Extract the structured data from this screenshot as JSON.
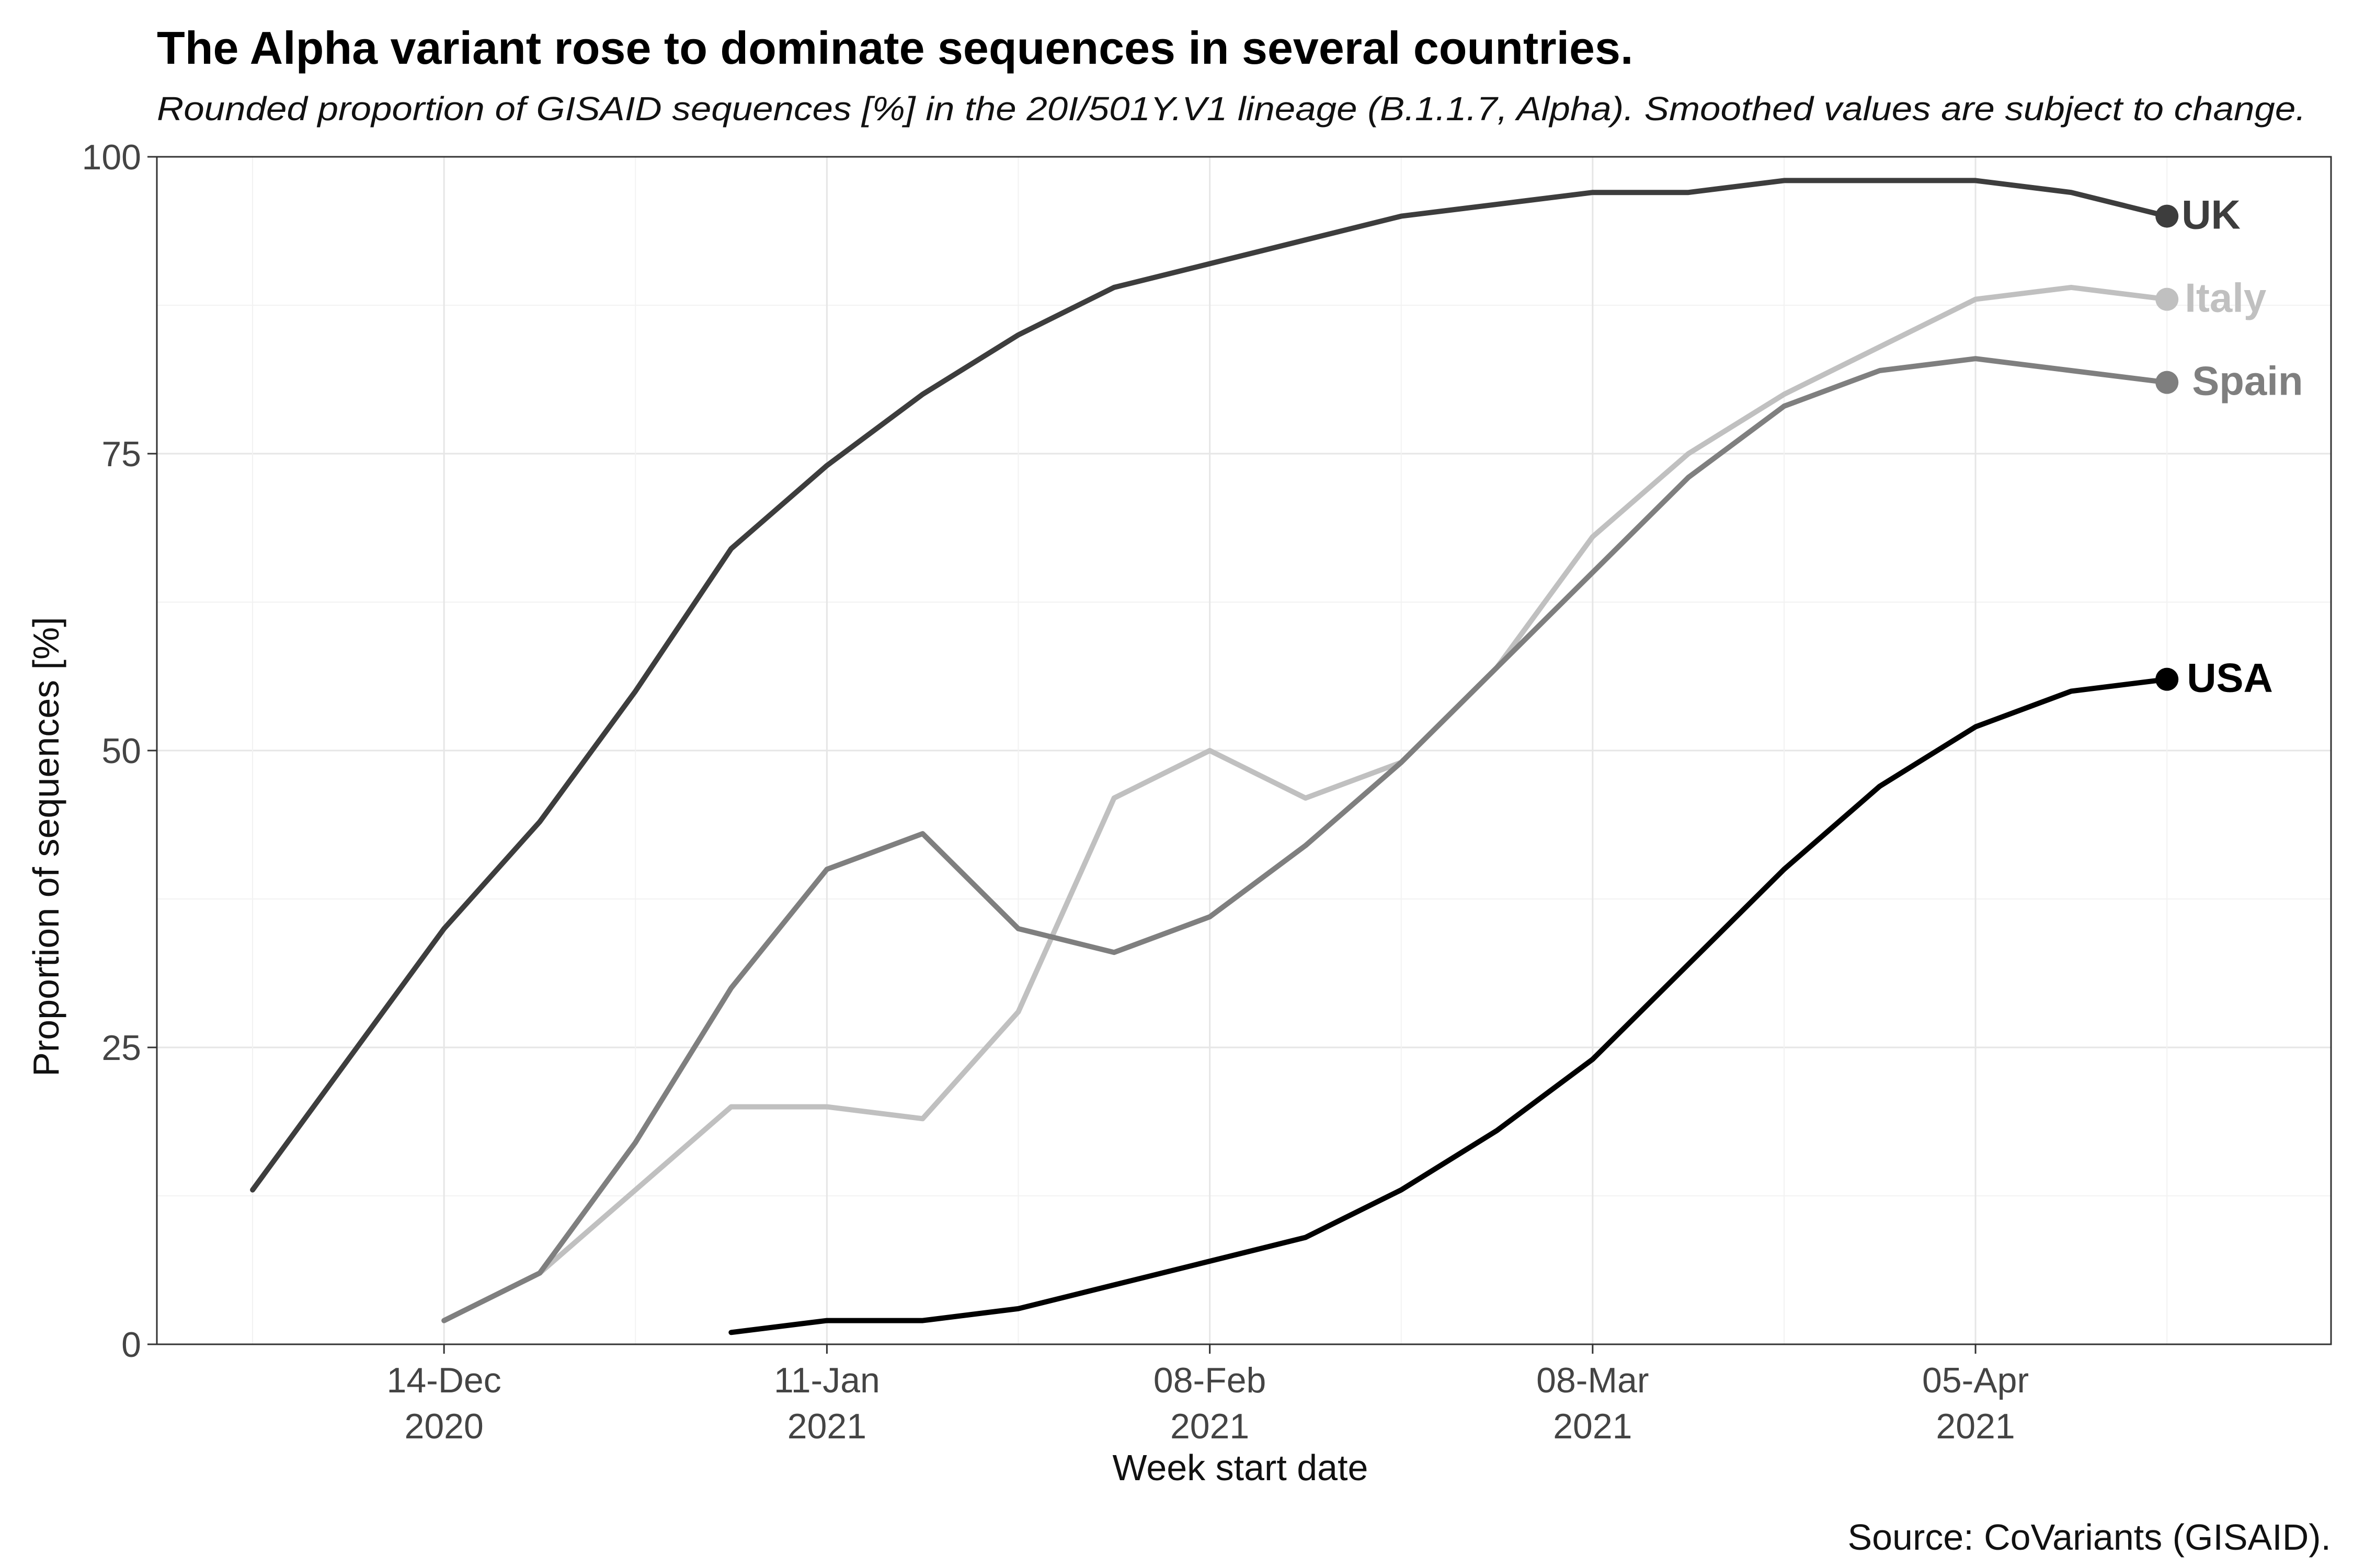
{
  "chart_data": {
    "type": "line",
    "title": "The Alpha variant rose to dominate sequences in several countries.",
    "subtitle": "Rounded proportion of GISAID sequences [%] in the 20I/501Y.V1 lineage (B.1.1.7, Alpha). Smoothed values are subject to change.",
    "xlabel": "Week start date",
    "ylabel": "Proportion of sequences [%]",
    "caption": "Source: CoVariants (GISAID).",
    "ylim": [
      0,
      100
    ],
    "yticks": [
      "0",
      "25",
      "50",
      "75",
      "100"
    ],
    "xlim": [
      "2020-11-23",
      "2021-05-01"
    ],
    "xticks": [
      {
        "date": "2020-12-14",
        "label1": "14-Dec",
        "label2": "2020"
      },
      {
        "date": "2021-01-11",
        "label1": "11-Jan",
        "label2": "2021"
      },
      {
        "date": "2021-02-08",
        "label1": "08-Feb",
        "label2": "2021"
      },
      {
        "date": "2021-03-08",
        "label1": "08-Mar",
        "label2": "2021"
      },
      {
        "date": "2021-04-05",
        "label1": "05-Apr",
        "label2": "2021"
      }
    ],
    "grid": true,
    "legend": "direct labels at line ends",
    "series": [
      {
        "name": "UK",
        "color": "#3d3d3d",
        "x": [
          "2020-11-30",
          "2020-12-07",
          "2020-12-14",
          "2020-12-21",
          "2020-12-28",
          "2021-01-04",
          "2021-01-11",
          "2021-01-18",
          "2021-01-25",
          "2021-02-01",
          "2021-02-08",
          "2021-02-15",
          "2021-02-22",
          "2021-03-01",
          "2021-03-08",
          "2021-03-15",
          "2021-03-22",
          "2021-03-29",
          "2021-04-05",
          "2021-04-12",
          "2021-04-19"
        ],
        "values": [
          13,
          24,
          35,
          44,
          55,
          67,
          74,
          80,
          85,
          89,
          91,
          93,
          95,
          96,
          97,
          97,
          98,
          98,
          98,
          97,
          95
        ]
      },
      {
        "name": "Italy",
        "color": "#c0c0c0",
        "x": [
          "2020-12-14",
          "2020-12-21",
          "2020-12-28",
          "2021-01-04",
          "2021-01-11",
          "2021-01-18",
          "2021-01-25",
          "2021-02-01",
          "2021-02-08",
          "2021-02-15",
          "2021-02-22",
          "2021-03-01",
          "2021-03-08",
          "2021-03-15",
          "2021-03-22",
          "2021-03-29",
          "2021-04-05",
          "2021-04-12",
          "2021-04-19"
        ],
        "values": [
          2,
          6,
          13,
          20,
          20,
          19,
          28,
          46,
          50,
          46,
          49,
          57,
          68,
          75,
          80,
          84,
          88,
          89,
          88
        ]
      },
      {
        "name": "Spain",
        "color": "#7f7f7f",
        "x": [
          "2020-12-14",
          "2020-12-21",
          "2020-12-28",
          "2021-01-04",
          "2021-01-11",
          "2021-01-18",
          "2021-01-25",
          "2021-02-01",
          "2021-02-08",
          "2021-02-15",
          "2021-02-22",
          "2021-03-01",
          "2021-03-08",
          "2021-03-15",
          "2021-03-22",
          "2021-03-29",
          "2021-04-05",
          "2021-04-12",
          "2021-04-19"
        ],
        "values": [
          2,
          6,
          17,
          30,
          40,
          43,
          35,
          33,
          36,
          42,
          49,
          57,
          65,
          73,
          79,
          82,
          83,
          82,
          81
        ]
      },
      {
        "name": "USA",
        "color": "#000000",
        "x": [
          "2021-01-04",
          "2021-01-11",
          "2021-01-18",
          "2021-01-25",
          "2021-02-01",
          "2021-02-08",
          "2021-02-15",
          "2021-02-22",
          "2021-03-01",
          "2021-03-08",
          "2021-03-15",
          "2021-03-22",
          "2021-03-29",
          "2021-04-05",
          "2021-04-12",
          "2021-04-19"
        ],
        "values": [
          1,
          2,
          2,
          3,
          5,
          7,
          9,
          13,
          18,
          24,
          32,
          40,
          47,
          52,
          55,
          56
        ]
      }
    ]
  }
}
